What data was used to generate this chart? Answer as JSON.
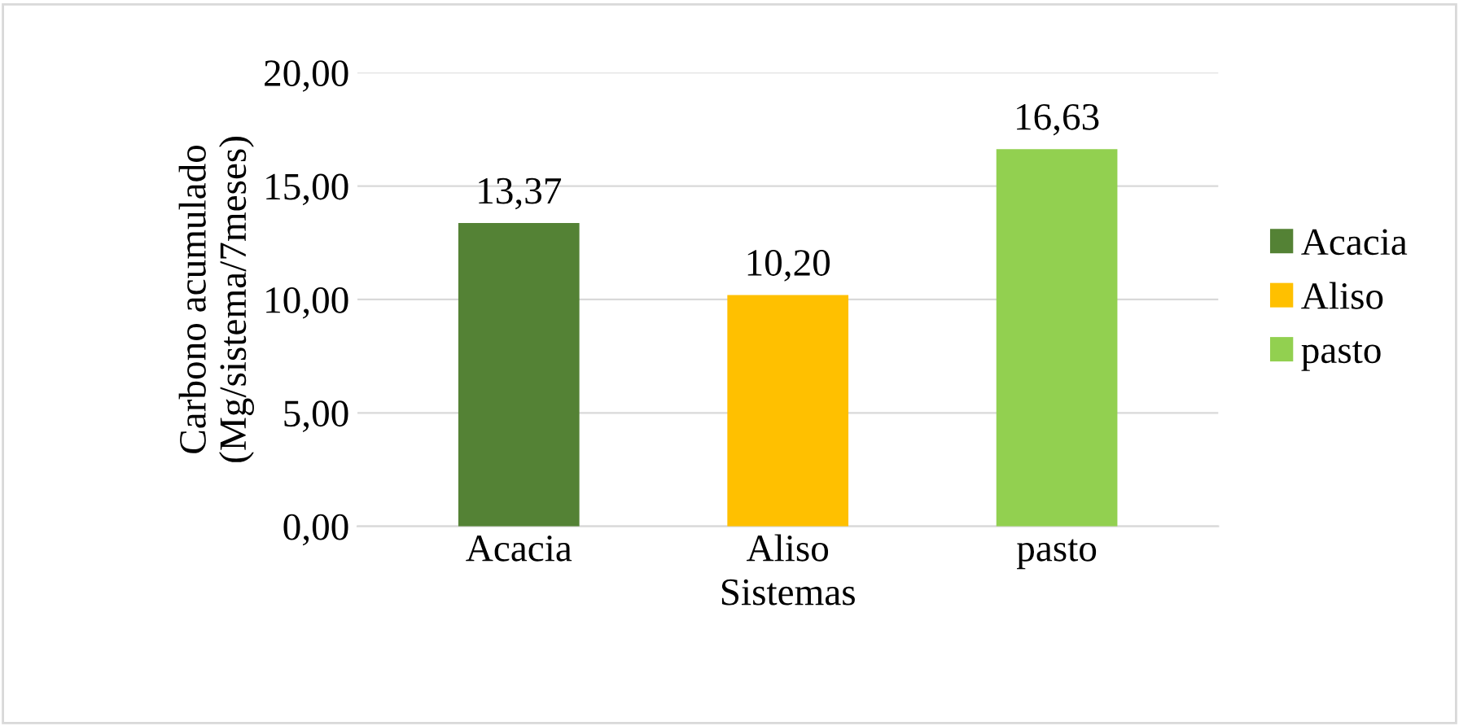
{
  "chart_data": {
    "type": "bar",
    "stacked": true,
    "xlabel": "Sistemas",
    "ylabel": "Carbono acumulado\n(Mg/sistema/7meses)",
    "categories": [
      "Acacia",
      "Aliso",
      "pasto"
    ],
    "series": [
      {
        "name": "Acacia",
        "color": "#548235",
        "values": [
          13.37,
          null,
          null
        ],
        "value_labels": [
          "13,37",
          null,
          null
        ]
      },
      {
        "name": "Aliso",
        "color": "#ffc000",
        "values": [
          null,
          10.2,
          null
        ],
        "value_labels": [
          null,
          "10,20",
          null
        ]
      },
      {
        "name": "pasto",
        "color": "#92d050",
        "values": [
          null,
          null,
          16.63
        ],
        "value_labels": [
          null,
          null,
          "16,63"
        ]
      }
    ],
    "ylim": [
      0,
      20
    ],
    "yticks": [
      {
        "value": 0,
        "label": "0,00"
      },
      {
        "value": 5,
        "label": "5,00"
      },
      {
        "value": 10,
        "label": "10,00"
      },
      {
        "value": 15,
        "label": "15,00"
      },
      {
        "value": 20,
        "label": "20,00"
      }
    ],
    "grid": "y",
    "legend": "right"
  }
}
